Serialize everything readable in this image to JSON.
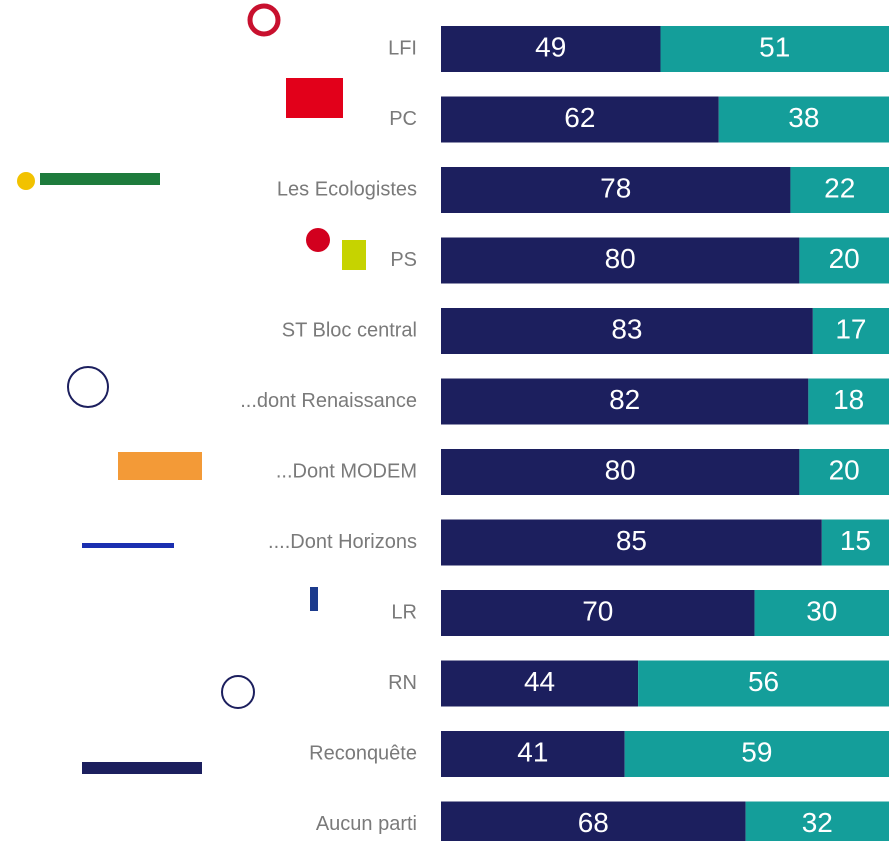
{
  "chart_data": {
    "type": "stacked_bar_100",
    "categories": [
      "LFI",
      "PC",
      "Les Ecologistes",
      "PS",
      "ST Bloc central",
      "...dont Renaissance",
      "...Dont MODEM",
      "....Dont Horizons",
      "LR",
      "RN",
      "Reconquête",
      "Aucun parti"
    ],
    "series": [
      {
        "color": "#1c1f5e",
        "values": [
          49,
          62,
          78,
          80,
          83,
          82,
          80,
          85,
          70,
          44,
          41,
          68
        ]
      },
      {
        "color": "#149e9a",
        "values": [
          51,
          38,
          22,
          20,
          17,
          18,
          20,
          15,
          30,
          56,
          59,
          32
        ]
      }
    ],
    "xlim": [
      0,
      100
    ]
  }
}
